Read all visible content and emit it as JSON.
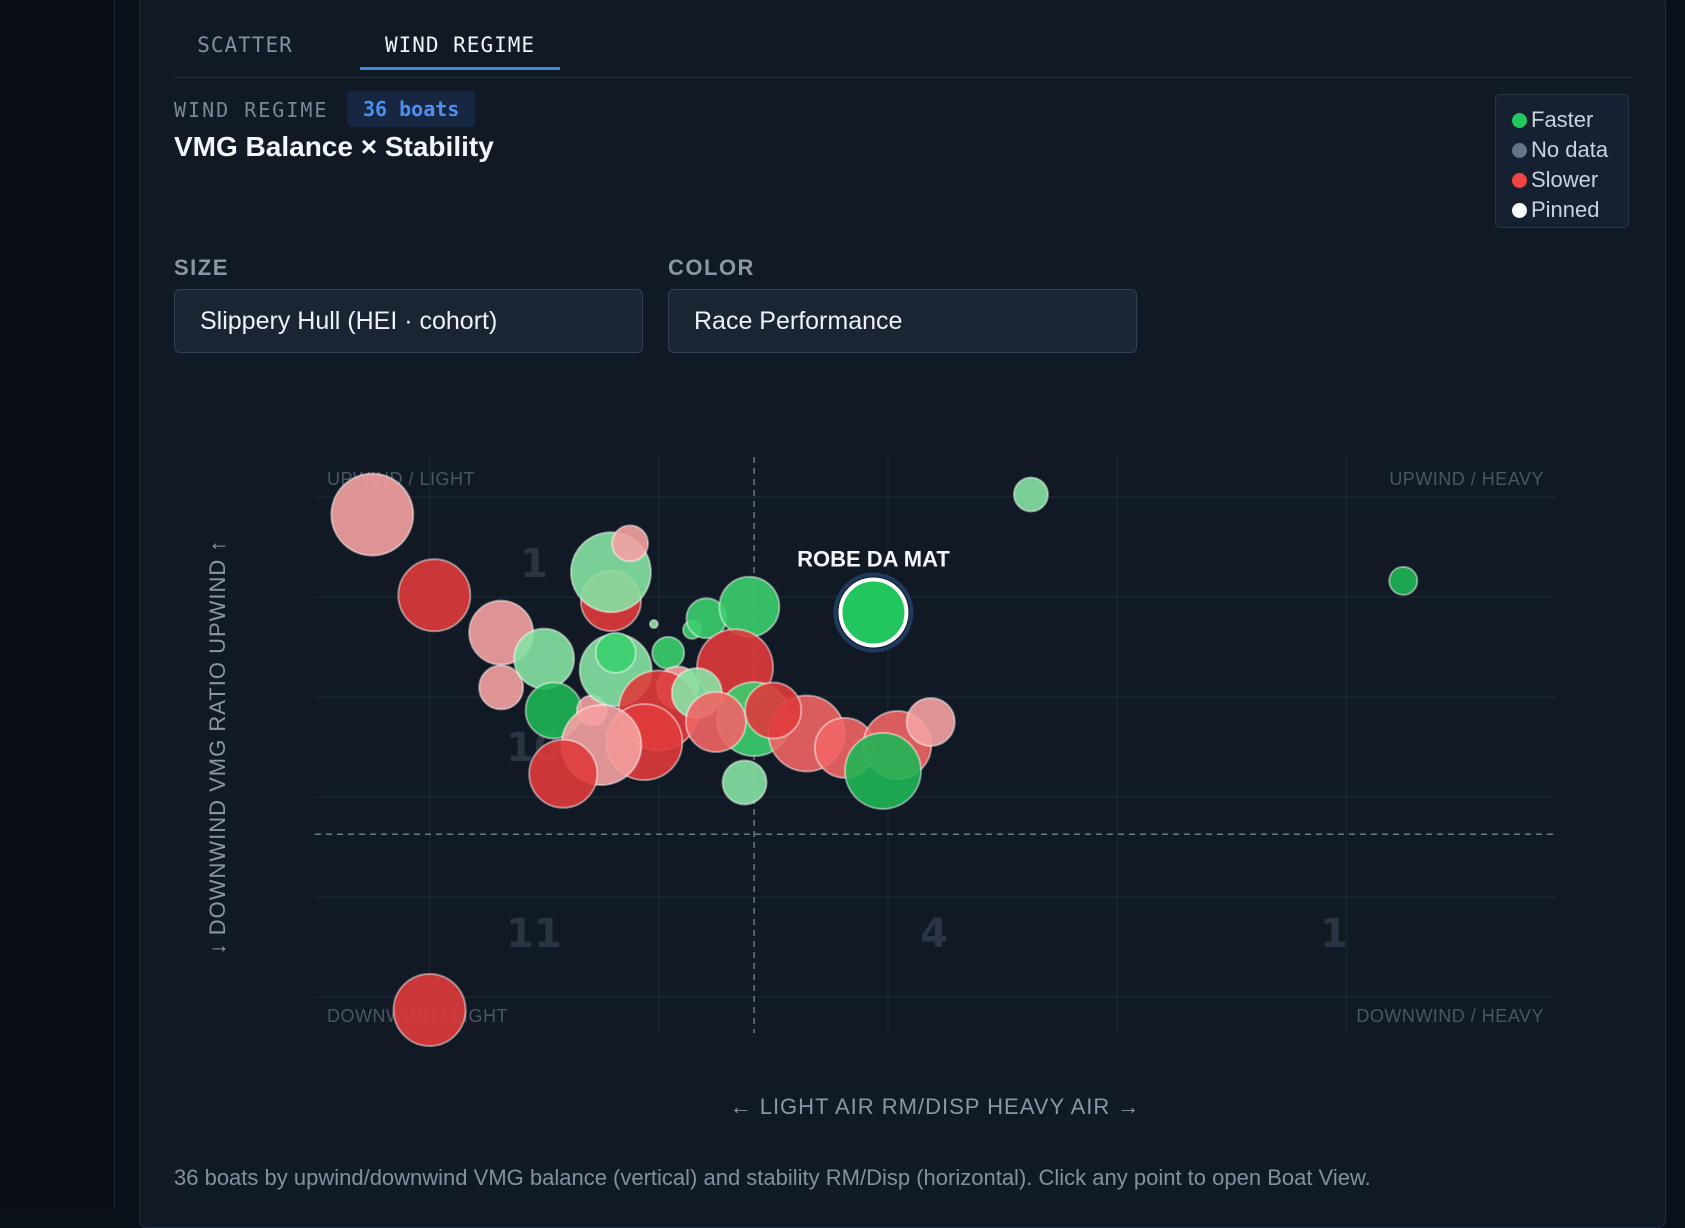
{
  "tabs": [
    {
      "label": "SCATTER",
      "active": false
    },
    {
      "label": "WIND REGIME",
      "active": true
    }
  ],
  "header": {
    "eyebrow": "WIND REGIME",
    "count_badge": "36 boats",
    "title": "VMG Balance × Stability"
  },
  "legend": {
    "items": [
      {
        "label": "Faster",
        "color": "#22c55e"
      },
      {
        "label": "No data",
        "color": "#64748b"
      },
      {
        "label": "Slower",
        "color": "#ef4444"
      },
      {
        "label": "Pinned",
        "color": "#f8fafc"
      }
    ]
  },
  "controls": {
    "size": {
      "label": "SIZE",
      "value": "Slippery Hull (HEI · cohort)"
    },
    "color": {
      "label": "COLOR",
      "value": "Race Performance"
    }
  },
  "caption": "36 boats by upwind/downwind VMG balance (vertical) and stability RM/Disp (horizontal). Click any point to open Boat View.",
  "chart_data": {
    "type": "scatter",
    "xlabel": "← LIGHT AIR RM/DISP HEAVY AIR →",
    "ylabel": "↓ DOWNWIND VMG RATIO UPWIND ↑",
    "xlim": [
      0,
      13
    ],
    "ylim": [
      0,
      10
    ],
    "x_split": 4.6,
    "y_split": 3.45,
    "grid": true,
    "legend_position": "top-right",
    "quadrant_labels": {
      "upwind_light": "UPWIND / LIGHT",
      "upwind_heavy": "UPWIND / HEAVY",
      "downwind_light": "DOWNWIND / LIGHT",
      "downwind_heavy": "DOWNWIND / HEAVY"
    },
    "zone_counts": [
      "1",
      "10",
      "11",
      "4",
      "1"
    ],
    "pinned": {
      "name": "ROBE DA MAT",
      "x": 5.85,
      "y": 7.3
    },
    "points": [
      {
        "x": 0.6,
        "y": 9.0,
        "r": 41,
        "perf": "slower",
        "shade": "light"
      },
      {
        "x": 1.25,
        "y": 7.6,
        "r": 36,
        "perf": "slower",
        "shade": "dark"
      },
      {
        "x": 1.95,
        "y": 6.95,
        "r": 32,
        "perf": "slower",
        "shade": "light"
      },
      {
        "x": 1.95,
        "y": 6.0,
        "r": 22,
        "perf": "slower",
        "shade": "light"
      },
      {
        "x": 2.4,
        "y": 6.5,
        "r": 30,
        "perf": "faster",
        "shade": "light"
      },
      {
        "x": 2.5,
        "y": 5.6,
        "r": 28,
        "perf": "faster",
        "shade": "dark"
      },
      {
        "x": 2.9,
        "y": 5.6,
        "r": 15,
        "perf": "slower",
        "shade": "light"
      },
      {
        "x": 3.1,
        "y": 7.5,
        "r": 30,
        "perf": "slower",
        "shade": "dark"
      },
      {
        "x": 3.1,
        "y": 8.0,
        "r": 40,
        "perf": "faster",
        "shade": "light"
      },
      {
        "x": 3.3,
        "y": 8.5,
        "r": 18,
        "perf": "slower",
        "shade": "light"
      },
      {
        "x": 3.15,
        "y": 6.3,
        "r": 36,
        "perf": "faster",
        "shade": "light"
      },
      {
        "x": 3.15,
        "y": 6.6,
        "r": 20,
        "perf": "faster",
        "shade": "mid"
      },
      {
        "x": 3.7,
        "y": 6.6,
        "r": 16,
        "perf": "faster",
        "shade": "mid"
      },
      {
        "x": 3.8,
        "y": 6.0,
        "r": 21,
        "perf": "slower",
        "shade": "light"
      },
      {
        "x": 3.6,
        "y": 5.6,
        "r": 40,
        "perf": "slower",
        "shade": "dark"
      },
      {
        "x": 3.45,
        "y": 5.05,
        "r": 38,
        "perf": "slower",
        "shade": "dark"
      },
      {
        "x": 3.0,
        "y": 5.0,
        "r": 40,
        "perf": "slower",
        "shade": "light"
      },
      {
        "x": 2.6,
        "y": 4.5,
        "r": 34,
        "perf": "slower",
        "shade": "dark"
      },
      {
        "x": 3.55,
        "y": 7.1,
        "r": 4,
        "perf": "faster",
        "shade": "light"
      },
      {
        "x": 3.95,
        "y": 7.0,
        "r": 9,
        "perf": "faster",
        "shade": "mid"
      },
      {
        "x": 4.1,
        "y": 7.2,
        "r": 20,
        "perf": "faster",
        "shade": "mid"
      },
      {
        "x": 4.55,
        "y": 7.4,
        "r": 30,
        "perf": "faster",
        "shade": "mid"
      },
      {
        "x": 4.4,
        "y": 6.35,
        "r": 38,
        "perf": "slower",
        "shade": "dark"
      },
      {
        "x": 4.6,
        "y": 5.45,
        "r": 37,
        "perf": "faster",
        "shade": "mid"
      },
      {
        "x": 4.0,
        "y": 5.9,
        "r": 25,
        "perf": "faster",
        "shade": "light"
      },
      {
        "x": 4.2,
        "y": 5.4,
        "r": 30,
        "perf": "slower",
        "shade": "mid"
      },
      {
        "x": 5.15,
        "y": 5.2,
        "r": 38,
        "perf": "slower",
        "shade": "mid"
      },
      {
        "x": 4.8,
        "y": 5.6,
        "r": 28,
        "perf": "slower",
        "shade": "dark"
      },
      {
        "x": 5.55,
        "y": 4.95,
        "r": 30,
        "perf": "slower",
        "shade": "mid"
      },
      {
        "x": 6.1,
        "y": 5.0,
        "r": 34,
        "perf": "slower",
        "shade": "mid"
      },
      {
        "x": 6.45,
        "y": 5.4,
        "r": 24,
        "perf": "slower",
        "shade": "light"
      },
      {
        "x": 5.95,
        "y": 4.55,
        "r": 38,
        "perf": "faster",
        "shade": "dark"
      },
      {
        "x": 4.5,
        "y": 4.35,
        "r": 22,
        "perf": "faster",
        "shade": "light"
      },
      {
        "x": 7.5,
        "y": 9.35,
        "r": 17,
        "perf": "faster",
        "shade": "light"
      },
      {
        "x": 11.4,
        "y": 7.85,
        "r": 14,
        "perf": "faster",
        "shade": "dark"
      },
      {
        "x": 1.2,
        "y": 0.4,
        "r": 36,
        "perf": "slower",
        "shade": "dark"
      }
    ]
  }
}
